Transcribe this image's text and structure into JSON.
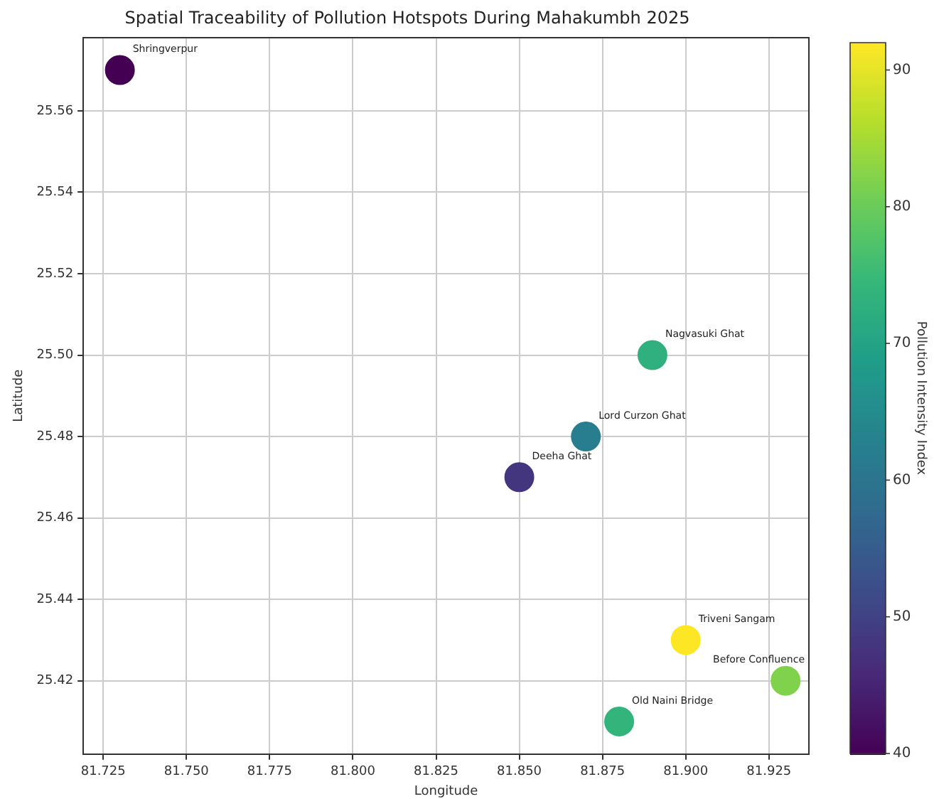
{
  "chart_data": {
    "type": "scatter",
    "title": "Spatial Traceability of Pollution Hotspots During Mahakumbh 2025",
    "xlabel": "Longitude",
    "ylabel": "Latitude",
    "clabel": "Pollution Intensity Index",
    "x": [
      81.73,
      81.89,
      81.87,
      81.85,
      81.9,
      81.93,
      81.88
    ],
    "values": [
      25.57,
      25.5,
      25.48,
      25.47,
      25.43,
      25.42,
      25.41
    ],
    "cvalues": [
      40,
      73,
      62,
      48,
      92,
      82,
      74
    ],
    "clim": [
      40,
      92
    ],
    "cticks": [
      40,
      50,
      60,
      70,
      80,
      90
    ],
    "xlim": [
      81.719,
      81.937
    ],
    "xticks": [
      81.725,
      {
        "value": 81.75,
        "label": "81.750"
      },
      81.775,
      {
        "value": 81.8,
        "label": "81.800"
      },
      81.825,
      {
        "value": 81.85,
        "label": "81.850"
      },
      81.875,
      {
        "value": 81.9,
        "label": "81.900"
      },
      81.925
    ],
    "ylim": [
      25.402,
      25.578
    ],
    "yticks": [
      25.42,
      25.44,
      25.46,
      25.48,
      {
        "value": 25.5,
        "label": "25.50"
      },
      25.52,
      25.54,
      25.56
    ],
    "grid": true,
    "marker": "circle",
    "annotations": [
      {
        "text": "Shringverpur",
        "x": 81.73,
        "y": 25.57
      },
      {
        "text": "Nagvasuki Ghat",
        "x": 81.89,
        "y": 25.5
      },
      {
        "text": "Lord Curzon Ghat",
        "x": 81.87,
        "y": 25.48
      },
      {
        "text": "Deeha Ghat",
        "x": 81.85,
        "y": 25.47
      },
      {
        "text": "Triveni Sangam",
        "x": 81.9,
        "y": 25.43
      },
      {
        "text": "Before Confluence",
        "x": 81.93,
        "y": 25.42
      },
      {
        "text": "Old Naini Bridge",
        "x": 81.88,
        "y": 25.41
      }
    ]
  }
}
